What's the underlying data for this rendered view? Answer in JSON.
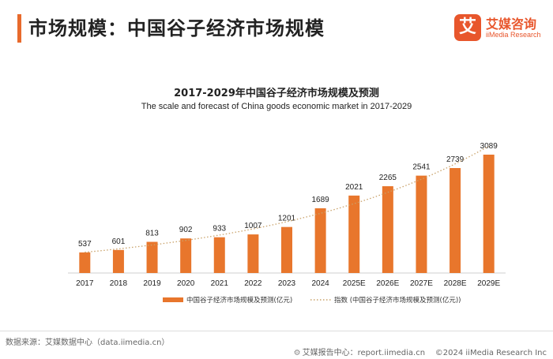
{
  "header": {
    "title": "市场规模：中国谷子经济市场规模",
    "logo_mark": "艾",
    "logo_cn": "艾媒咨询",
    "logo_en": "iiMedia Research"
  },
  "chart_data": {
    "type": "bar",
    "title": "2017-2029年中国谷子经济市场规模及预测",
    "subtitle": "The scale and forecast of China goods economic market in 2017-2029",
    "categories": [
      "2017",
      "2018",
      "2019",
      "2020",
      "2021",
      "2022",
      "2023",
      "2024",
      "2025E",
      "2026E",
      "2027E",
      "2028E",
      "2029E"
    ],
    "series": [
      {
        "name": "中国谷子经济市场规模及预测(亿元)",
        "type": "bar",
        "values": [
          537,
          601,
          813,
          902,
          933,
          1007,
          1201,
          1689,
          2021,
          2265,
          2541,
          2739,
          3089
        ],
        "color": "#e8762c"
      },
      {
        "name": "指数 (中国谷子经济市场规模及预测(亿元))",
        "type": "trendline",
        "style": "dotted",
        "color": "#c9a26a"
      }
    ],
    "data_labels": true,
    "ylim": [
      0,
      3500
    ],
    "grid": false,
    "legend_position": "bottom"
  },
  "footer": {
    "source": "数据来源：艾媒数据中心（data.iimedia.cn）",
    "icon": "gear-icon",
    "report_site": "艾媒报告中心：report.iimedia.cn",
    "copyright": "©2024  iiMedia Research Inc"
  }
}
